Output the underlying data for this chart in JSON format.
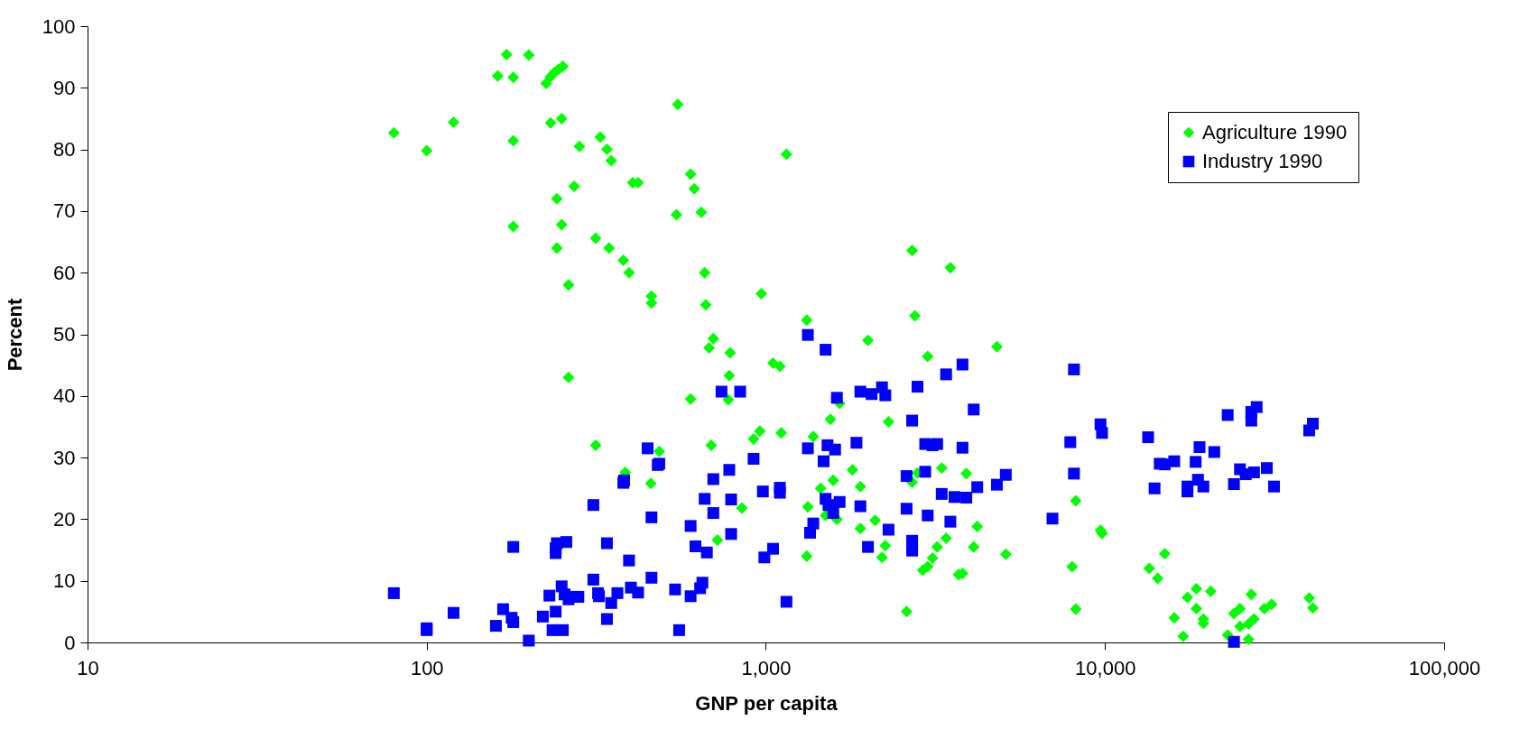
{
  "chart_data": {
    "type": "scatter",
    "xlabel": "GNP per capita",
    "ylabel": "Percent",
    "log": "x",
    "legend": "top right",
    "grid": false,
    "xlim": [
      10,
      100000
    ],
    "ylim": [
      0,
      100
    ],
    "xticks": [
      10,
      100,
      {
        "value": 1000,
        "label": "1,000"
      },
      {
        "value": 10000,
        "label": "10,000"
      },
      {
        "value": 100000,
        "label": "100,000"
      }
    ],
    "yticks": [
      0,
      10,
      20,
      30,
      40,
      50,
      60,
      70,
      80,
      90,
      100
    ],
    "series": [
      {
        "name": "Agriculture 1990",
        "color": "#00ff00",
        "marker": "diamond",
        "x": [
          80,
          100,
          120,
          162,
          172,
          180,
          180,
          180,
          200,
          225,
          232,
          238,
          245,
          252,
          232,
          250,
          242,
          242,
          250,
          262,
          262,
          282,
          272,
          315,
          325,
          340,
          345,
          350,
          380,
          395,
          405,
          420,
          460,
          460,
          458,
          485,
          315,
          385,
          550,
          545,
          600,
          615,
          645,
          660,
          665,
          680,
          700,
          690,
          720,
          775,
          785,
          780,
          600,
          850,
          920,
          960,
          970,
          1050,
          1100,
          1110,
          1150,
          1320,
          1320,
          1330,
          1380,
          1450,
          1500,
          1550,
          1580,
          1620,
          1650,
          1800,
          1900,
          1900,
          2000,
          2100,
          2200,
          2250,
          2300,
          2600,
          2700,
          2750,
          2700,
          2800,
          2900,
          3000,
          3100,
          3000,
          3200,
          3300,
          3400,
          3500,
          3700,
          3800,
          3900,
          4100,
          4200,
          4800,
          5100,
          8000,
          8200,
          8200,
          9700,
          9800,
          13500,
          14300,
          15000,
          16000,
          17000,
          17500,
          18600,
          18600,
          19500,
          19500,
          20500,
          23000,
          24000,
          25000,
          25000,
          26500,
          26500,
          27000,
          27500,
          29500,
          31000,
          40000,
          41000
        ],
        "values": [
          82.7,
          79.8,
          84.4,
          91.9,
          95.4,
          91.7,
          81.4,
          67.5,
          95.3,
          90.7,
          91.8,
          92.5,
          93,
          93.5,
          84.3,
          85,
          72,
          64,
          67.8,
          58,
          43,
          80.5,
          74,
          65.6,
          82,
          80,
          64,
          78.2,
          62,
          60,
          74.6,
          74.6,
          56.2,
          55.1,
          25.8,
          31,
          32,
          27.6,
          87.3,
          69.4,
          76,
          73.6,
          69.8,
          60,
          54.8,
          47.8,
          49.3,
          32,
          16.6,
          39.4,
          47,
          43.3,
          39.5,
          21.8,
          33,
          34.3,
          56.6,
          45.3,
          44.8,
          34,
          79.2,
          52.3,
          14,
          22,
          33.4,
          25,
          20.6,
          36.2,
          26.3,
          20,
          38.8,
          28,
          18.5,
          25.3,
          49,
          19.8,
          13.8,
          15.7,
          35.8,
          5,
          63.6,
          53,
          26,
          27.5,
          11.7,
          12.3,
          13.7,
          46.4,
          15.5,
          28.3,
          16.9,
          60.8,
          11,
          11.2,
          27.4,
          15.5,
          18.8,
          48,
          14.3,
          12.3,
          5.4,
          23,
          18.2,
          17.7,
          12,
          10.4,
          14.4,
          4,
          1,
          7.3,
          5.5,
          8.7,
          3.1,
          3.8,
          8.3,
          1.2,
          4.7,
          2.6,
          5.5,
          0.5,
          3,
          7.8,
          3.8,
          5.5,
          6.2,
          7.2,
          5.6
        ]
      },
      {
        "name": "Industry 1990",
        "color": "#0000ff",
        "marker": "square",
        "x": [
          80,
          100,
          100,
          120,
          160,
          168,
          178,
          180,
          180,
          200,
          220,
          230,
          235,
          240,
          240,
          242,
          240,
          250,
          252,
          255,
          258,
          262,
          272,
          280,
          310,
          310,
          320,
          322,
          340,
          340,
          350,
          365,
          380,
          382,
          395,
          400,
          420,
          448,
          460,
          460,
          480,
          485,
          540,
          555,
          600,
          600,
          620,
          640,
          650,
          660,
          670,
          700,
          700,
          740,
          780,
          790,
          790,
          840,
          920,
          980,
          990,
          1050,
          1100,
          1100,
          1150,
          1330,
          1330,
          1350,
          1380,
          1500,
          1480,
          1500,
          1520,
          1530,
          1580,
          1600,
          1620,
          1650,
          1850,
          1900,
          1900,
          2000,
          2050,
          2200,
          2250,
          2300,
          2600,
          2600,
          2700,
          2700,
          2700,
          2800,
          2950,
          2950,
          3000,
          3100,
          3200,
          3300,
          3400,
          3500,
          3600,
          3800,
          3800,
          3900,
          4100,
          4200,
          4800,
          5100,
          7000,
          7900,
          8100,
          8100,
          9700,
          9800,
          13400,
          14000,
          14500,
          15000,
          16000,
          17500,
          17500,
          18500,
          18800,
          19000,
          19500,
          21000,
          23000,
          24000,
          24000,
          25000,
          26000,
          27000,
          27000,
          28000,
          27500,
          30000,
          31500,
          40000,
          41000
        ],
        "values": [
          8,
          2,
          2.3,
          4.8,
          2.7,
          5.4,
          4,
          3.3,
          15.5,
          0.3,
          4.2,
          7.6,
          2,
          5,
          15.3,
          16.1,
          14.5,
          9.1,
          2,
          7.8,
          16.3,
          7,
          7.4,
          7.4,
          22.3,
          10.2,
          8,
          7.5,
          16.1,
          3.8,
          6.4,
          8,
          25.9,
          26.3,
          13.3,
          8.9,
          8.1,
          31.5,
          20.3,
          10.5,
          28.8,
          29,
          8.6,
          2,
          18.9,
          7.5,
          15.6,
          8.8,
          9.7,
          23.3,
          14.6,
          26.5,
          21,
          40.7,
          28,
          17.6,
          23.2,
          40.7,
          29.8,
          24.5,
          13.8,
          15.2,
          25.1,
          24.3,
          6.6,
          49.9,
          31.5,
          17.8,
          19.3,
          47.5,
          29.4,
          23.3,
          32,
          22.3,
          21,
          31.3,
          39.7,
          22.8,
          32.4,
          40.7,
          22.1,
          15.5,
          40.3,
          41.4,
          40.1,
          18.3,
          27,
          21.7,
          16.5,
          14.9,
          36,
          41.5,
          32.2,
          27.7,
          20.6,
          32,
          32.2,
          24.1,
          43.5,
          19.6,
          23.6,
          31.6,
          45.1,
          23.5,
          37.8,
          25.2,
          25.6,
          27.2,
          20.1,
          32.5,
          44.3,
          27.4,
          35.4,
          34,
          33.3,
          25,
          29,
          28.9,
          29.4,
          25.3,
          24.5,
          29.3,
          26.4,
          31.7,
          25.3,
          30.9,
          36.9,
          25.7,
          0.1,
          28.1,
          27.3,
          36,
          37.4,
          38.2,
          27.6,
          28.3,
          25.3,
          34.4,
          35.5
        ]
      }
    ]
  }
}
